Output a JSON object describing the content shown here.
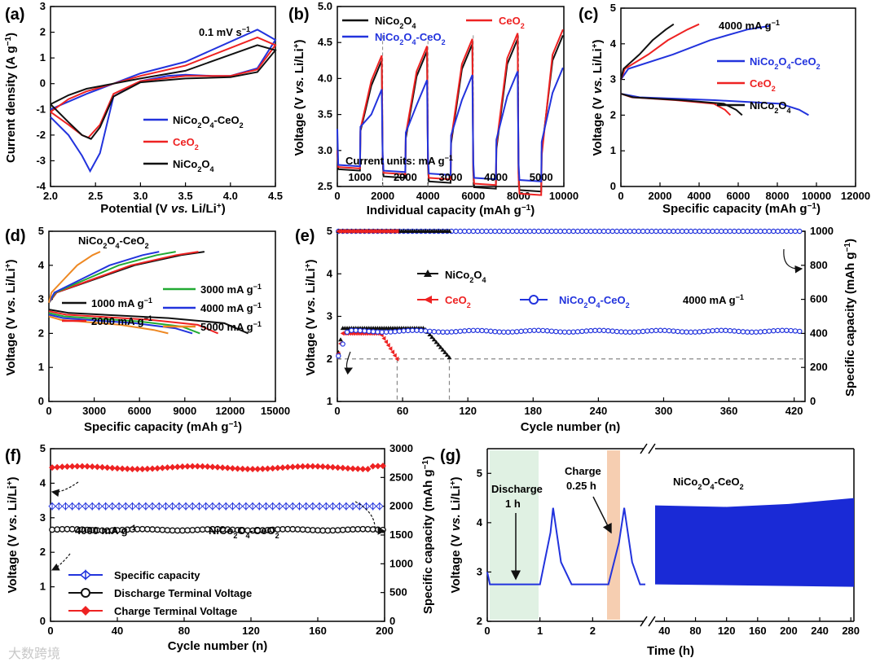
{
  "chart_data": [
    {
      "panel": "(a)",
      "type": "line",
      "xlabel": "Potential (V vs. Li/Li+)",
      "ylabel": "Current density (A g−1)",
      "xlim": [
        2.0,
        4.5
      ],
      "ylim": [
        -4,
        3
      ],
      "xticks": [
        "2.0",
        "2.5",
        "3.0",
        "3.5",
        "4.0",
        "4.5"
      ],
      "yticks": [
        "-4",
        "-3",
        "-2",
        "-1",
        "0",
        "1",
        "2",
        "3"
      ],
      "annotation": "0.1 mV s−1",
      "series": [
        {
          "name": "NiCo2O4-CeO2",
          "color": "#2233dd",
          "x": [
            2.0,
            2.2,
            2.35,
            2.44,
            2.55,
            2.7,
            3.0,
            3.3,
            3.5,
            3.8,
            4.0,
            4.3,
            4.5,
            4.3,
            3.5,
            3.0,
            2.7,
            2.4,
            2.2,
            2.0
          ],
          "y": [
            -1.3,
            -2.0,
            -2.8,
            -3.4,
            -2.7,
            -0.5,
            0.1,
            0.3,
            0.35,
            0.3,
            0.3,
            0.6,
            1.7,
            2.1,
            0.85,
            0.4,
            0.0,
            -0.4,
            -0.7,
            -1.0
          ]
        },
        {
          "name": "CeO2",
          "color": "#ee2222",
          "x": [
            2.0,
            2.2,
            2.35,
            2.42,
            2.55,
            2.7,
            3.0,
            3.5,
            4.0,
            4.3,
            4.5,
            4.3,
            3.5,
            3.0,
            2.7,
            2.4,
            2.2,
            2.0
          ],
          "y": [
            -1.1,
            -1.6,
            -2.0,
            -2.1,
            -1.6,
            -0.4,
            0.1,
            0.3,
            0.3,
            0.55,
            1.5,
            1.8,
            0.7,
            0.3,
            0.0,
            -0.3,
            -0.6,
            -1.1
          ]
        },
        {
          "name": "NiCo2O4",
          "color": "#111111",
          "x": [
            2.0,
            2.2,
            2.35,
            2.45,
            2.55,
            2.7,
            3.0,
            3.5,
            4.0,
            4.3,
            4.5,
            4.3,
            3.5,
            3.0,
            2.7,
            2.4,
            2.2,
            2.0
          ],
          "y": [
            -0.8,
            -1.5,
            -2.0,
            -2.15,
            -1.7,
            -0.5,
            0.05,
            0.2,
            0.25,
            0.45,
            1.3,
            1.5,
            0.5,
            0.2,
            0.0,
            -0.2,
            -0.45,
            -0.8
          ]
        }
      ]
    },
    {
      "panel": "(b)",
      "type": "line",
      "xlabel": "Individual capacity (mAh g−1)",
      "ylabel": "Voltage (V vs. Li/Li+)",
      "xlim": [
        0,
        10000
      ],
      "ylim": [
        2.5,
        5.0
      ],
      "xticks": [
        "0",
        "2000",
        "4000",
        "6000",
        "8000",
        "10000"
      ],
      "yticks": [
        "2.5",
        "3.0",
        "3.5",
        "4.0",
        "4.5",
        "5.0"
      ],
      "annotation": "Current units: mA g−1",
      "rate_labels": [
        "1000",
        "2000",
        "3000",
        "4000",
        "5000"
      ],
      "series": [
        {
          "name": "NiCo2O4",
          "color": "#111111",
          "discharge": [
            2.72,
            2.62,
            2.55,
            2.47,
            2.43
          ],
          "charge": [
            4.25,
            4.38,
            4.48,
            4.55,
            4.6
          ]
        },
        {
          "name": "CeO2",
          "color": "#ee2222",
          "discharge": [
            2.75,
            2.67,
            2.6,
            2.52,
            2.38
          ],
          "charge": [
            4.32,
            4.45,
            4.55,
            4.63,
            4.68
          ]
        },
        {
          "name": "NiCo2O4-CeO2",
          "color": "#2233dd",
          "discharge": [
            2.78,
            2.7,
            2.66,
            2.6,
            2.57
          ],
          "charge": [
            3.85,
            3.98,
            4.05,
            4.1,
            4.15
          ]
        }
      ]
    },
    {
      "panel": "(c)",
      "type": "line",
      "xlabel": "Specific capacity (mAh g−1)",
      "ylabel": "Voltage (V vs. Li/Li+)",
      "xlim": [
        0,
        12000
      ],
      "ylim": [
        0,
        5
      ],
      "xticks": [
        "0",
        "2000",
        "4000",
        "6000",
        "8000",
        "10000",
        "12000"
      ],
      "yticks": [
        "0",
        "1",
        "2",
        "3",
        "4",
        "5"
      ],
      "annotation": "4000 mA g−1",
      "series": [
        {
          "name": "NiCo2O4-CeO2",
          "color": "#2233dd",
          "discharge_end": 9600,
          "charge_end": 7600,
          "charge_v": 4.5
        },
        {
          "name": "CeO2",
          "color": "#ee2222",
          "discharge_end": 5600,
          "charge_end": 4000,
          "charge_v": 4.55
        },
        {
          "name": "NiCo2O4",
          "color": "#111111",
          "discharge_end": 6200,
          "charge_end": 2700,
          "charge_v": 4.55
        }
      ]
    },
    {
      "panel": "(d)",
      "type": "line",
      "xlabel": "Specific capacity (mAh g−1)",
      "ylabel": "Voltage (V vs. Li/Li+)",
      "xlim": [
        0,
        15000
      ],
      "ylim": [
        0,
        5
      ],
      "xticks": [
        "0",
        "3000",
        "6000",
        "9000",
        "12000",
        "15000"
      ],
      "yticks": [
        "0",
        "1",
        "2",
        "3",
        "4",
        "5"
      ],
      "annotation": "NiCo2O4-CeO2",
      "series": [
        {
          "name": "1000 mA g−1",
          "color": "#111111",
          "discharge_end": 13200,
          "charge_end": 10300
        },
        {
          "name": "2000 mA g−1",
          "color": "#ee2222",
          "discharge_end": 11200,
          "charge_end": 9900
        },
        {
          "name": "3000 mA g−1",
          "color": "#22aa33",
          "discharge_end": 10000,
          "charge_end": 8400
        },
        {
          "name": "4000 mA g−1",
          "color": "#2233dd",
          "discharge_end": 9500,
          "charge_end": 7300
        },
        {
          "name": "5000 mA g−1",
          "color": "#ee8822",
          "discharge_end": 7900,
          "charge_end": 3400
        }
      ]
    },
    {
      "panel": "(e)",
      "type": "scatter",
      "xlabel": "Cycle number (n)",
      "ylabel": "Voltage (V vs. Li/Li+)",
      "y2label": "Specific capacity (mAh g−1)",
      "xlim": [
        0,
        430
      ],
      "ylim": [
        1,
        5
      ],
      "y2lim": [
        0,
        1000
      ],
      "xticks": [
        "0",
        "60",
        "120",
        "180",
        "240",
        "300",
        "360",
        "420"
      ],
      "yticks": [
        "1",
        "2",
        "3",
        "4",
        "5"
      ],
      "y2ticks": [
        "0",
        "200",
        "400",
        "600",
        "800",
        "1000"
      ],
      "annotation": "4000 mA g−1",
      "cutoff_voltage": 2.0,
      "cutoff_cycles": [
        55,
        103
      ],
      "series": [
        {
          "name": "NiCo2O4",
          "color": "#111111",
          "capacity_end": 103,
          "voltage_end": 103
        },
        {
          "name": "CeO2",
          "color": "#ee2222",
          "capacity_end": 55,
          "voltage_end": 55
        },
        {
          "name": "NiCo2O4-CeO2",
          "color": "#2233dd",
          "capacity_end": 428,
          "voltage_end": 428
        }
      ]
    },
    {
      "panel": "(f)",
      "type": "scatter",
      "xlabel": "Cycle number (n)",
      "ylabel": "Voltage (V vs. Li/Li+)",
      "y2label": "Specific capacity (mAh g−1)",
      "xlim": [
        0,
        200
      ],
      "ylim": [
        0,
        5
      ],
      "y2lim": [
        0,
        3000
      ],
      "xticks": [
        "0",
        "40",
        "80",
        "120",
        "160",
        "200"
      ],
      "yticks": [
        "0",
        "1",
        "2",
        "3",
        "4",
        "5"
      ],
      "y2ticks": [
        "0",
        "500",
        "1000",
        "1500",
        "2000",
        "2500",
        "3000"
      ],
      "annotations": [
        "4000 mA g−1",
        "NiCo2O4-CeO2"
      ],
      "series": [
        {
          "name": "Specific capacity",
          "color": "#2233dd",
          "value": 2000
        },
        {
          "name": "Discharge Terminal Voltage",
          "color": "#111111",
          "value": 2.65
        },
        {
          "name": "Charge Terminal Voltage",
          "color": "#ee2222",
          "value": 4.45
        }
      ]
    },
    {
      "panel": "(g)",
      "type": "line",
      "xlabel": "Time (h)",
      "ylabel": "Voltage (V vs. Li/Li+)",
      "ylim": [
        2,
        5.5
      ],
      "xticks_left": [
        "0",
        "1",
        "2"
      ],
      "xticks_right": [
        "40",
        "80",
        "120",
        "160",
        "200",
        "240",
        "280"
      ],
      "yticks": [
        "2",
        "3",
        "4",
        "5"
      ],
      "annotations": [
        "Discharge",
        "1 h",
        "Charge",
        "0.25 h",
        "NiCo2O4-CeO2"
      ],
      "discharge_voltage": 2.75,
      "charge_peak": 4.3
    }
  ],
  "watermark": "大数跨境"
}
